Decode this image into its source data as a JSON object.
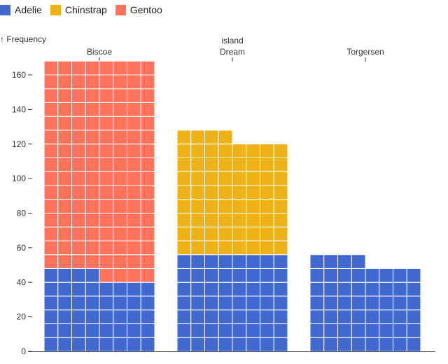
{
  "chart_data": {
    "type": "waffle",
    "facet_label": "island",
    "ylabel": "↑ Frequency",
    "xlabel": "",
    "ylim": [
      0,
      170
    ],
    "yticks": [
      0,
      20,
      40,
      60,
      80,
      100,
      120,
      140,
      160
    ],
    "cells_per_row": 8,
    "categories": [
      "Biscoe",
      "Dream",
      "Torgersen"
    ],
    "series": [
      {
        "name": "Adelie",
        "color": "#4269d0",
        "values": [
          44,
          56,
          52
        ]
      },
      {
        "name": "Chinstrap",
        "color": "#efb118",
        "values": [
          0,
          68,
          0
        ]
      },
      {
        "name": "Gentoo",
        "color": "#ff725c",
        "values": [
          124,
          0,
          0
        ]
      }
    ],
    "legend_position": "top-left",
    "grid": false
  }
}
